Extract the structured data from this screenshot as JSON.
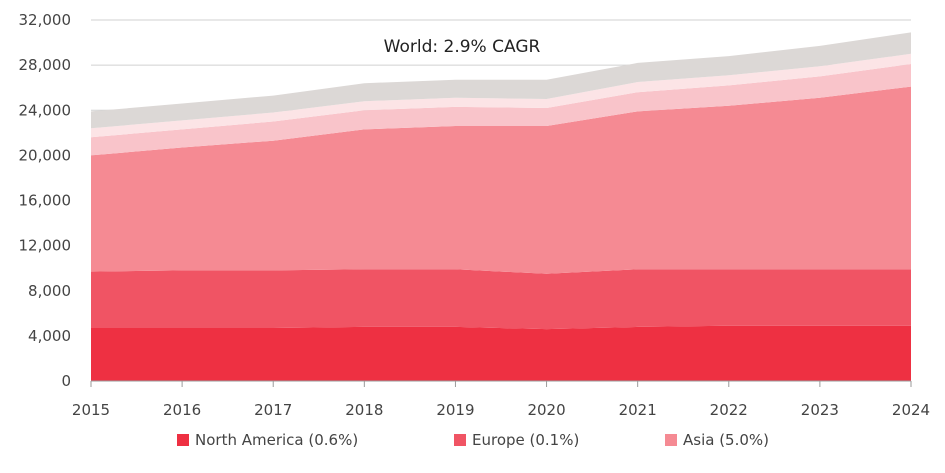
{
  "chart_data": {
    "type": "area",
    "stacked": true,
    "annotation": "World: 2.9% CAGR",
    "x": [
      "2015",
      "2016",
      "2017",
      "2018",
      "2019",
      "2020",
      "2021",
      "2022",
      "2023",
      "2024"
    ],
    "ylim": [
      0,
      32000
    ],
    "yticks": [
      0,
      4000,
      8000,
      12000,
      16000,
      20000,
      24000,
      28000,
      32000
    ],
    "ytick_labels": [
      "0",
      "4,000",
      "8,000",
      "12,000",
      "16,000",
      "20,000",
      "24,000",
      "28,000",
      "32,000"
    ],
    "legend_position": "bottom",
    "series": [
      {
        "name": "North America (0.6%)",
        "color": "#ee3042",
        "in_legend": true,
        "values": [
          4700,
          4700,
          4700,
          4800,
          4800,
          4600,
          4800,
          4900,
          4900,
          4900
        ]
      },
      {
        "name": "Europe (0.1%)",
        "color": "#f05464",
        "in_legend": true,
        "values": [
          5000,
          5100,
          5100,
          5100,
          5100,
          4900,
          5100,
          5000,
          5000,
          5000
        ]
      },
      {
        "name": "Asia (5.0%)",
        "color": "#f58a93",
        "in_legend": true,
        "values": [
          10300,
          10900,
          11500,
          12400,
          12700,
          13100,
          14000,
          14500,
          15200,
          16200
        ]
      },
      {
        "name": "",
        "color": "#f9c4ca",
        "in_legend": false,
        "values": [
          1600,
          1600,
          1700,
          1700,
          1700,
          1600,
          1700,
          1800,
          1900,
          2000
        ]
      },
      {
        "name": "",
        "color": "#fce4e6",
        "in_legend": false,
        "values": [
          800,
          800,
          800,
          800,
          800,
          800,
          900,
          900,
          900,
          900
        ]
      },
      {
        "name": "",
        "color": "#dcd8d6",
        "in_legend": false,
        "values": [
          1500,
          1500,
          1500,
          1600,
          1600,
          1700,
          1700,
          1700,
          1800,
          1900
        ]
      }
    ]
  }
}
